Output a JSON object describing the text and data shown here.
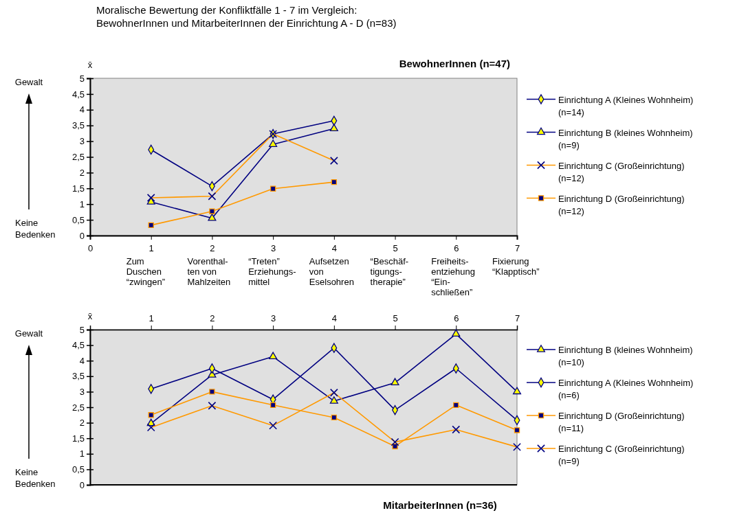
{
  "chart_data": [
    {
      "type": "line",
      "title": "Moralische Bewertung der Konfliktfälle 1 - 7 im Vergleich:\nBewohnerInnen und MitarbeiterInnen der Einrichtung A - D (n=83)",
      "subtitle": "BewohnerInnen (n=47)",
      "ylabel": "x̄",
      "annotations": [
        "Gewalt",
        "Keine Bedenken",
        "Zum\nDuschen\n“zwingen”",
        "Vorenthal-\nten von\nMahlzeiten",
        "“Treten”\nErziehungs-\nmittel",
        "Aufsetzen\nvon\nEselsohren",
        "“Beschäf-\ntigungs-\ntherapie”",
        "Freiheits-\nentziehung\n“Ein-\nschließen”",
        "Fixierung\n“Klapptisch”"
      ],
      "x": [
        1,
        2,
        3,
        4
      ],
      "xlim": [
        0,
        7
      ],
      "xticks": [
        0,
        1,
        2,
        3,
        4,
        5,
        6,
        7
      ],
      "ylim": [
        0,
        5
      ],
      "yticks": [
        0,
        {
          "value": 0.5,
          "label": "0,5"
        },
        1,
        {
          "value": 1.5,
          "label": "1,5"
        },
        2,
        {
          "value": 2.5,
          "label": "2,5"
        },
        3,
        {
          "value": 3.5,
          "label": "3,5"
        },
        4,
        {
          "value": 4.5,
          "label": "4,5"
        },
        5
      ],
      "legend": "right",
      "grid": false,
      "series": [
        {
          "name": "Einrichtung A (Kleines Wohnheim) (n=14)",
          "color": "#000080",
          "marker": "diamond",
          "values": [
            2.73,
            1.57,
            3.23,
            3.65
          ]
        },
        {
          "name": "Einrichtung B (kleines Wohnheim) (n=9)",
          "color": "#000080",
          "marker": "triangle",
          "values": [
            1.07,
            0.55,
            2.9,
            3.4
          ]
        },
        {
          "name": "Einrichtung C (Großeinrichtung) (n=12)",
          "color": "#ff9900",
          "marker": "cross",
          "values": [
            1.2,
            1.25,
            3.23,
            2.38
          ]
        },
        {
          "name": "Einrichtung D (Großeinrichtung) (n=12)",
          "color": "#ff9900",
          "marker": "square",
          "values": [
            0.33,
            0.77,
            1.49,
            1.7
          ]
        }
      ]
    },
    {
      "type": "line",
      "title": "MitarbeiterInnen (n=36)",
      "ylabel": "x̄",
      "annotations": [
        "Gewalt",
        "Keine Bedenken"
      ],
      "x": [
        1,
        2,
        3,
        4,
        5,
        6,
        7
      ],
      "xlim": [
        0,
        7
      ],
      "xticks": [
        1,
        2,
        3,
        4,
        5,
        6,
        7
      ],
      "ylim": [
        0,
        5
      ],
      "yticks": [
        0,
        {
          "value": 0.5,
          "label": "0,5"
        },
        1,
        {
          "value": 1.5,
          "label": "1,5"
        },
        2,
        {
          "value": 2.5,
          "label": "2,5"
        },
        3,
        {
          "value": 3.5,
          "label": "3,5"
        },
        4,
        {
          "value": 4.5,
          "label": "4,5"
        },
        5
      ],
      "legend": "right",
      "grid": false,
      "series": [
        {
          "name": "Einrichtung B (kleines Wohnheim) (n=10)",
          "color": "#000080",
          "marker": "triangle",
          "values": [
            1.98,
            3.54,
            4.13,
            2.7,
            3.29,
            4.86,
            3.0
          ]
        },
        {
          "name": "Einrichtung A (Kleines Wohnheim) (n=6)",
          "color": "#000080",
          "marker": "diamond",
          "values": [
            3.09,
            3.75,
            2.75,
            4.41,
            2.41,
            3.75,
            2.08
          ]
        },
        {
          "name": "Einrichtung D (Großeinrichtung) (n=11)",
          "color": "#ff9900",
          "marker": "square",
          "values": [
            2.25,
            3.0,
            2.57,
            2.17,
            1.24,
            2.57,
            1.76
          ]
        },
        {
          "name": "Einrichtung C (Großeinrichtung) (n=9)",
          "color": "#ff9900",
          "marker": "cross",
          "values": [
            1.85,
            2.55,
            1.91,
            2.97,
            1.38,
            1.78,
            1.22
          ]
        }
      ]
    }
  ]
}
